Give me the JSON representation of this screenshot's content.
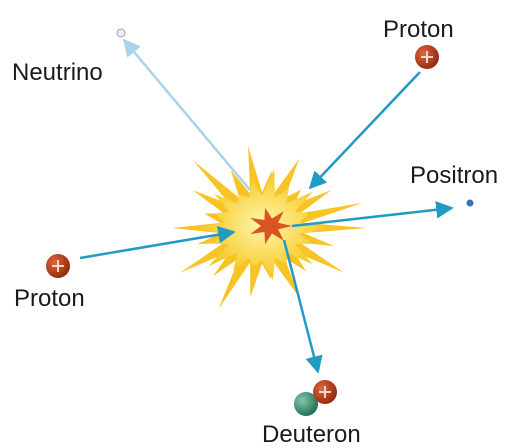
{
  "nodes": [
    {
      "label": "Neutrino"
    },
    {
      "label": "Proton"
    },
    {
      "label": "Positron"
    },
    {
      "label": "Proton"
    },
    {
      "label": "Deuteron"
    }
  ]
}
